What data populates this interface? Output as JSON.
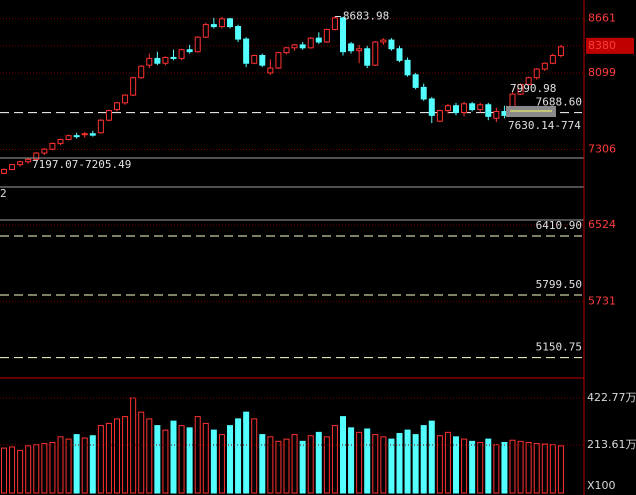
{
  "chart_data": {
    "type": "candlestick",
    "up_color": "#ff3232",
    "down_color": "#54ffff",
    "grid_color": "#7a0000",
    "ylim": [
      4940,
      8855
    ],
    "yticks": [
      8661,
      8380,
      8099,
      7306,
      6524,
      5731
    ],
    "open": [
      7060,
      7100,
      7150,
      7180,
      7205,
      7270,
      7310,
      7370,
      7410,
      7450,
      7460,
      7470,
      7480,
      7610,
      7720,
      7790,
      7870,
      8050,
      8180,
      8250,
      8200,
      8260,
      8250,
      8340,
      8320,
      8470,
      8600,
      8580,
      8660,
      8580,
      8450,
      8200,
      8280,
      8100,
      8150,
      8310,
      8360,
      8390,
      8360,
      8460,
      8420,
      8550,
      8670,
      8400,
      8330,
      8350,
      8180,
      8420,
      8440,
      8350,
      8230,
      8080,
      7950,
      7830,
      7600,
      7710,
      7760,
      7690,
      7780,
      7720,
      7770,
      7630,
      7700,
      7660,
      7880,
      7980,
      8050,
      8140,
      8200,
      8280
    ],
    "high": [
      7110,
      7160,
      7190,
      7220,
      7280,
      7320,
      7380,
      7420,
      7460,
      7480,
      7490,
      7500,
      7620,
      7720,
      7800,
      7880,
      8060,
      8180,
      8300,
      8320,
      8270,
      8340,
      8350,
      8390,
      8480,
      8620,
      8670,
      8680,
      8670,
      8600,
      8470,
      8290,
      8300,
      8240,
      8320,
      8370,
      8400,
      8420,
      8470,
      8520,
      8560,
      8683.98,
      8680,
      8420,
      8390,
      8380,
      8430,
      8460,
      8460,
      8380,
      8260,
      8100,
      7990,
      7850,
      7720,
      7780,
      7790,
      7800,
      7800,
      7790,
      7790,
      7740,
      7760,
      7900,
      7990,
      8060,
      8150,
      8210,
      8300,
      8390
    ],
    "low": [
      7050,
      7090,
      7130,
      7160,
      7195,
      7250,
      7300,
      7350,
      7400,
      7420,
      7430,
      7440,
      7470,
      7600,
      7700,
      7770,
      7860,
      8040,
      8150,
      8180,
      8180,
      8230,
      8230,
      8300,
      8310,
      8460,
      8560,
      8560,
      8560,
      8420,
      8160,
      8190,
      8160,
      8080,
      8140,
      8290,
      8330,
      8340,
      8350,
      8400,
      8410,
      8540,
      8280,
      8300,
      8200,
      8150,
      8170,
      8390,
      8330,
      8210,
      8060,
      7930,
      7810,
      7580,
      7590,
      7680,
      7660,
      7650,
      7700,
      7690,
      7610,
      7590,
      7630,
      7650,
      7870,
      7960,
      8030,
      8120,
      8190,
      8260
    ],
    "close": [
      7100,
      7150,
      7180,
      7205,
      7270,
      7310,
      7370,
      7410,
      7450,
      7440,
      7470,
      7455,
      7610,
      7710,
      7790,
      7870,
      8050,
      8170,
      8250,
      8200,
      8260,
      8250,
      8340,
      8320,
      8470,
      8600,
      8580,
      8660,
      8580,
      8450,
      8200,
      8280,
      8180,
      8150,
      8310,
      8360,
      8390,
      8360,
      8460,
      8420,
      8550,
      8670,
      8320,
      8330,
      8350,
      8180,
      8420,
      8440,
      8350,
      8230,
      8080,
      7950,
      7830,
      7660,
      7710,
      7760,
      7690,
      7780,
      7720,
      7770,
      7650,
      7700,
      7660,
      7880,
      7980,
      8050,
      8140,
      8200,
      8280,
      8370
    ],
    "volume": [
      200,
      205,
      190,
      210,
      215,
      220,
      225,
      250,
      240,
      260,
      245,
      255,
      300,
      310,
      330,
      340,
      423,
      360,
      330,
      300,
      280,
      320,
      300,
      290,
      340,
      310,
      280,
      260,
      300,
      330,
      360,
      330,
      260,
      250,
      230,
      240,
      260,
      230,
      255,
      270,
      250,
      300,
      340,
      290,
      270,
      285,
      260,
      250,
      240,
      265,
      280,
      260,
      300,
      320,
      255,
      270,
      250,
      240,
      230,
      225,
      240,
      215,
      225,
      235,
      230,
      225,
      220,
      218,
      215,
      210
    ],
    "vlim": [
      0,
      512
    ],
    "vticks": [
      {
        "value": 422.77,
        "label": "422.77万"
      },
      {
        "value": 213.61,
        "label": "213.61万"
      }
    ],
    "volume_unit": "X100",
    "peak": {
      "value": 8683.98,
      "label": "8683.98"
    },
    "levels": [
      {
        "value": 7688.6,
        "label": "7688.60",
        "color": "#ffffff"
      },
      {
        "value": 6410.9,
        "label": "6410.90",
        "color": "#ffffc8"
      },
      {
        "value": 5799.5,
        "label": "5799.50",
        "color": "#ffffc8"
      },
      {
        "value": 5150.75,
        "label": "5150.75",
        "color": "#ffffc8"
      }
    ],
    "annotations": [
      "7990.98",
      "7630.14-774",
      "7197.07-7205.49",
      "2"
    ]
  }
}
